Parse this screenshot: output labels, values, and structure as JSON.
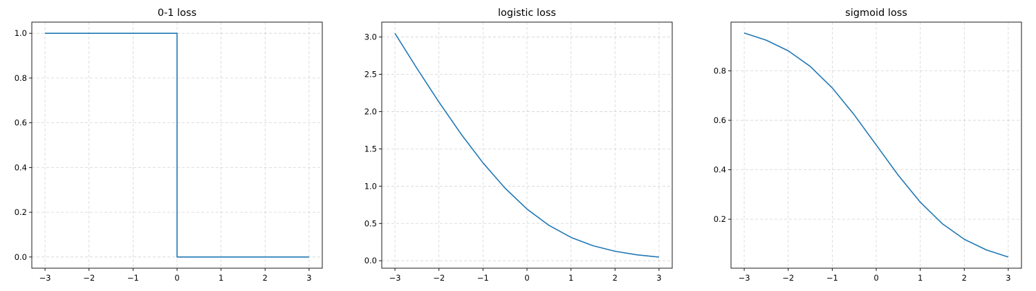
{
  "chart_data": [
    {
      "type": "line",
      "title": "0-1 loss",
      "xlim": [
        -3.3,
        3.3
      ],
      "ylim": [
        -0.05,
        1.05
      ],
      "xticks": [
        -3,
        -2,
        -1,
        0,
        1,
        2,
        3
      ],
      "yticks": [
        0.0,
        0.2,
        0.4,
        0.6,
        0.8,
        1.0
      ],
      "xtick_labels": [
        "−3",
        "−2",
        "−1",
        "0",
        "1",
        "2",
        "3"
      ],
      "ytick_labels": [
        "0.0",
        "0.2",
        "0.4",
        "0.6",
        "0.8",
        "1.0"
      ],
      "grid": true,
      "color": "#1f77b4",
      "series": [
        {
          "x": [
            -3,
            0,
            0,
            3
          ],
          "y": [
            1,
            1,
            0,
            0
          ]
        }
      ]
    },
    {
      "type": "line",
      "title": "logistic loss",
      "xlim": [
        -3.3,
        3.3
      ],
      "ylim": [
        -0.1,
        3.2
      ],
      "xticks": [
        -3,
        -2,
        -1,
        0,
        1,
        2,
        3
      ],
      "yticks": [
        0.0,
        0.5,
        1.0,
        1.5,
        2.0,
        2.5,
        3.0
      ],
      "xtick_labels": [
        "−3",
        "−2",
        "−1",
        "0",
        "1",
        "2",
        "3"
      ],
      "ytick_labels": [
        "0.0",
        "0.5",
        "1.0",
        "1.5",
        "2.0",
        "2.5",
        "3.0"
      ],
      "grid": true,
      "color": "#1f77b4",
      "series": [
        {
          "x": [
            -3,
            -2.5,
            -2,
            -1.5,
            -1,
            -0.5,
            0,
            0.5,
            1,
            1.5,
            2,
            2.5,
            3
          ],
          "y": [
            3.049,
            2.579,
            2.127,
            1.701,
            1.313,
            0.974,
            0.693,
            0.474,
            0.313,
            0.201,
            0.127,
            0.079,
            0.049
          ]
        }
      ]
    },
    {
      "type": "line",
      "title": "sigmoid loss",
      "xlim": [
        -3.3,
        3.3
      ],
      "ylim": [
        0.002,
        0.997
      ],
      "xticks": [
        -3,
        -2,
        -1,
        0,
        1,
        2,
        3
      ],
      "yticks": [
        0.2,
        0.4,
        0.6,
        0.8
      ],
      "xtick_labels": [
        "−3",
        "−2",
        "−1",
        "0",
        "1",
        "2",
        "3"
      ],
      "ytick_labels": [
        "0.2",
        "0.4",
        "0.6",
        "0.8"
      ],
      "grid": true,
      "color": "#1f77b4",
      "series": [
        {
          "x": [
            -3,
            -2.5,
            -2,
            -1.5,
            -1,
            -0.5,
            0,
            0.5,
            1,
            1.5,
            2,
            2.5,
            3
          ],
          "y": [
            0.953,
            0.924,
            0.881,
            0.818,
            0.731,
            0.622,
            0.5,
            0.378,
            0.269,
            0.182,
            0.119,
            0.076,
            0.047
          ]
        }
      ]
    }
  ]
}
